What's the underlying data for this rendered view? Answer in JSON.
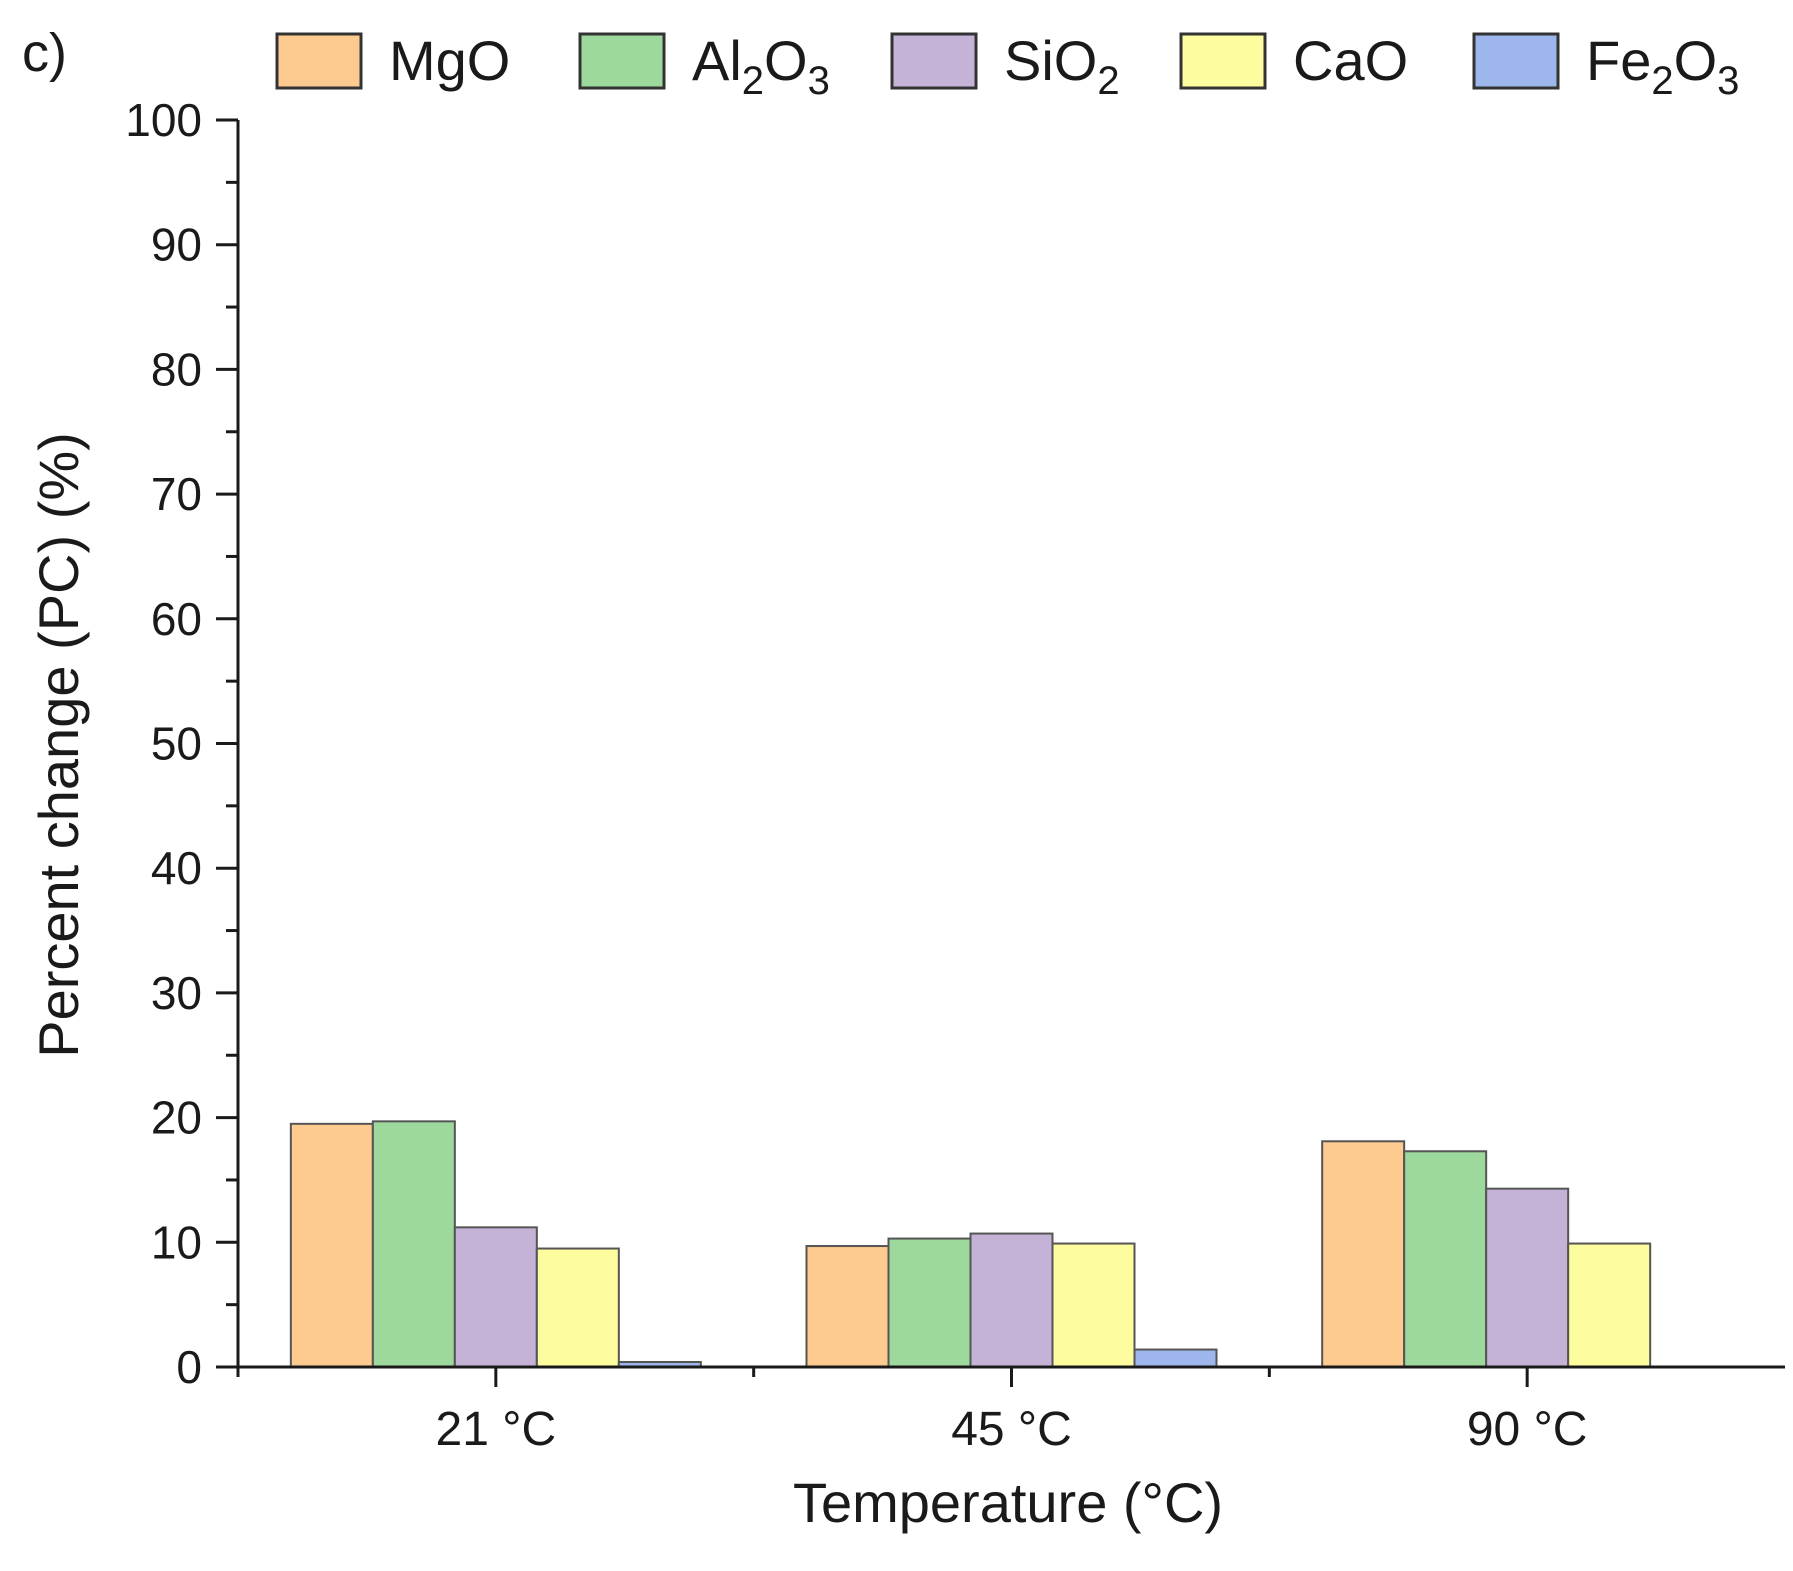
{
  "panel_label": "c)",
  "chart_data": {
    "type": "bar",
    "title": "",
    "xlabel": "Temperature (°C)",
    "ylabel": "Percent change (PC) (%)",
    "ylim": [
      0,
      100
    ],
    "yticks": [
      0,
      10,
      20,
      30,
      40,
      50,
      60,
      70,
      80,
      90,
      100
    ],
    "grid": false,
    "legend_position": "top",
    "categories": [
      "21 °C",
      "45 °C",
      "90 °C"
    ],
    "series": [
      {
        "name": "MgO",
        "label_main": "MgO",
        "label_parts": [],
        "color": "#FDCB8F",
        "values": [
          19.5,
          9.7,
          18.1
        ]
      },
      {
        "name": "Al2O3",
        "label_main": "Al",
        "label_parts": [
          [
            "2",
            "sub"
          ],
          [
            "O",
            "main"
          ],
          [
            "3",
            "sub"
          ]
        ],
        "color": "#9DD89C",
        "values": [
          19.7,
          10.3,
          17.3
        ]
      },
      {
        "name": "SiO2",
        "label_main": "SiO",
        "label_parts": [
          [
            "2",
            "sub"
          ]
        ],
        "color": "#C4B3D6",
        "values": [
          11.2,
          10.7,
          14.3
        ]
      },
      {
        "name": "CaO",
        "label_main": "CaO",
        "label_parts": [],
        "color": "#FDFC9E",
        "values": [
          9.5,
          9.9,
          9.9
        ]
      },
      {
        "name": "Fe2O3",
        "label_main": "Fe",
        "label_parts": [
          [
            "2",
            "sub"
          ],
          [
            "O",
            "main"
          ],
          [
            "3",
            "sub"
          ]
        ],
        "color": "#9DB7EC",
        "values": [
          0.4,
          1.4,
          0.0
        ]
      }
    ]
  }
}
